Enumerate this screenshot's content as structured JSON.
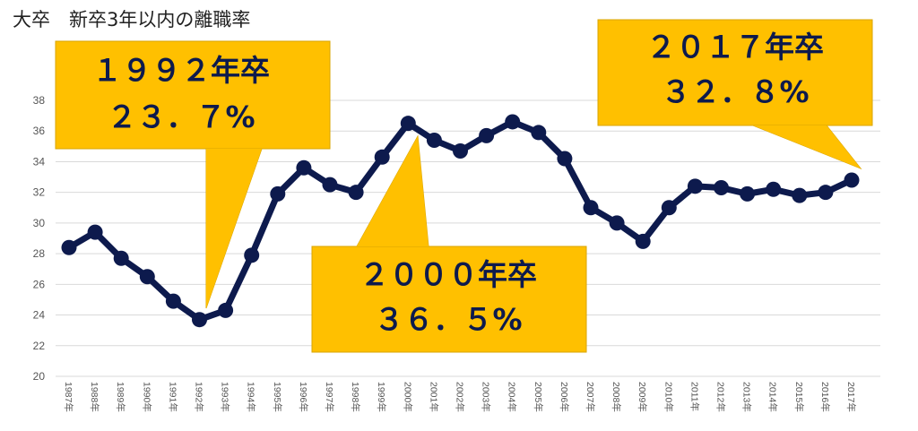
{
  "chart_data": {
    "type": "line",
    "title": "大卒　新卒3年以内の離職率",
    "categories": [
      "1987年",
      "1988年",
      "1989年",
      "1990年",
      "1991年",
      "1992年",
      "1993年",
      "1994年",
      "1995年",
      "1996年",
      "1997年",
      "1998年",
      "1999年",
      "2000年",
      "2001年",
      "2002年",
      "2003年",
      "2004年",
      "2005年",
      "2006年",
      "2007年",
      "2008年",
      "2009年",
      "2010年",
      "2011年",
      "2012年",
      "2013年",
      "2014年",
      "2015年",
      "2016年",
      "2017年"
    ],
    "values": [
      28.4,
      29.4,
      27.7,
      26.5,
      24.9,
      23.7,
      24.3,
      27.9,
      31.9,
      33.6,
      32.5,
      32.0,
      34.3,
      36.5,
      35.4,
      34.7,
      35.7,
      36.6,
      35.9,
      34.2,
      31.0,
      30.0,
      28.8,
      31.0,
      32.4,
      32.3,
      31.9,
      32.2,
      31.8,
      32.0,
      32.8
    ],
    "ylim": [
      20,
      38
    ],
    "yticks": [
      20,
      22,
      24,
      26,
      28,
      30,
      32,
      34,
      36,
      38
    ],
    "grid": true,
    "line_color": "#0d1a4d",
    "annotations": [
      {
        "id": "callout-1992",
        "line1": "１９９２年卒",
        "line2": "２３．７%",
        "target_index": 5
      },
      {
        "id": "callout-2000",
        "line1": "２０００年卒",
        "line2": "３６．５%",
        "target_index": 13
      },
      {
        "id": "callout-2017",
        "line1": "２０１７年卒",
        "line2": "３２．８%",
        "target_index": 30
      }
    ],
    "callout_fill": "#ffc000",
    "callout_text_color": "#0d1a4d"
  }
}
